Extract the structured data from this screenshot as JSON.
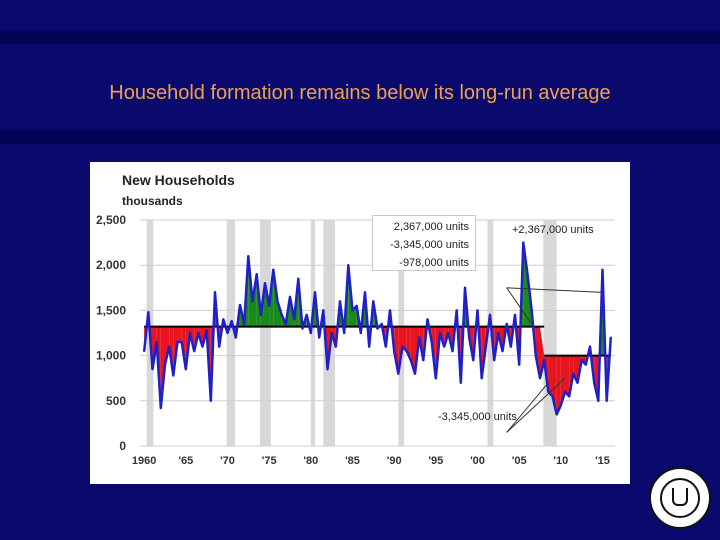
{
  "slide": {
    "title": "Household formation remains below its long-run average"
  },
  "seal": {
    "label": "Federal Reserve Bank of Dallas seal"
  },
  "colors": {
    "background": "#0a0a6e",
    "title": "#f0a04a",
    "series_line": "#2020c8",
    "above_fill": "#1a8a1a",
    "below_fill": "#e8141e",
    "recession_band": "#d8d8d8",
    "average_line": "#000000"
  },
  "annotations": {
    "box": [
      "2,367,000 units",
      "-3,345,000 units",
      "-978,000 units"
    ],
    "plus_label": "+2,367,000 units",
    "minus_label": "-3,345,000 units"
  },
  "chart_data": {
    "type": "area",
    "title": "New Households",
    "subtitle": "thousands",
    "xlabel": "",
    "ylabel": "thousands",
    "xlim": [
      1959.5,
      2016.5
    ],
    "ylim": [
      0,
      2500
    ],
    "yticks": [
      0,
      500,
      1000,
      1500,
      2000,
      2500
    ],
    "ytick_labels": [
      "0",
      "500",
      "1,000",
      "1,500",
      "2,000",
      "2,500"
    ],
    "xtick_positions": [
      1960,
      1965,
      1970,
      1975,
      1980,
      1985,
      1990,
      1995,
      2000,
      2005,
      2010,
      2015
    ],
    "xtick_labels": [
      "1960",
      "'65",
      "'70",
      "'75",
      "'80",
      "'85",
      "'90",
      "'95",
      "'00",
      "'05",
      "'10",
      "'15"
    ],
    "long_run_average": 1320,
    "post_2008_average": 1000,
    "recessions": [
      [
        1960.3,
        1961.1
      ],
      [
        1969.9,
        1970.9
      ],
      [
        1973.9,
        1975.2
      ],
      [
        1980.0,
        1980.5
      ],
      [
        1981.5,
        1982.9
      ],
      [
        1990.5,
        1991.2
      ],
      [
        2001.2,
        2001.9
      ],
      [
        2007.9,
        2009.5
      ]
    ],
    "series": [
      {
        "name": "New Households",
        "x": [
          1960.0,
          1960.5,
          1961.0,
          1961.5,
          1962.0,
          1962.5,
          1963.0,
          1963.5,
          1964.0,
          1964.5,
          1965.0,
          1965.5,
          1966.0,
          1966.5,
          1967.0,
          1967.5,
          1968.0,
          1968.5,
          1969.0,
          1969.5,
          1970.0,
          1970.5,
          1971.0,
          1971.5,
          1972.0,
          1972.5,
          1973.0,
          1973.5,
          1974.0,
          1974.5,
          1975.0,
          1975.5,
          1976.0,
          1976.5,
          1977.0,
          1977.5,
          1978.0,
          1978.5,
          1979.0,
          1979.5,
          1980.0,
          1980.5,
          1981.0,
          1981.5,
          1982.0,
          1982.5,
          1983.0,
          1983.5,
          1984.0,
          1984.5,
          1985.0,
          1985.5,
          1986.0,
          1986.5,
          1987.0,
          1987.5,
          1988.0,
          1988.5,
          1989.0,
          1989.5,
          1990.0,
          1990.5,
          1991.0,
          1991.5,
          1992.0,
          1992.5,
          1993.0,
          1993.5,
          1994.0,
          1994.5,
          1995.0,
          1995.5,
          1996.0,
          1996.5,
          1997.0,
          1997.5,
          1998.0,
          1998.5,
          1999.0,
          1999.5,
          2000.0,
          2000.5,
          2001.0,
          2001.5,
          2002.0,
          2002.5,
          2003.0,
          2003.5,
          2004.0,
          2004.5,
          2005.0,
          2005.5,
          2006.0,
          2006.5,
          2007.0,
          2007.5,
          2008.0,
          2008.5,
          2009.0,
          2009.5,
          2010.0,
          2010.5,
          2011.0,
          2011.5,
          2012.0,
          2012.5,
          2013.0,
          2013.5,
          2014.0,
          2014.5,
          2015.0,
          2015.5,
          2016.0
        ],
        "y": [
          1050,
          1480,
          850,
          1150,
          420,
          900,
          1100,
          780,
          1150,
          1150,
          850,
          1250,
          1050,
          1250,
          1100,
          1280,
          500,
          1700,
          1100,
          1400,
          1250,
          1380,
          1200,
          1560,
          1350,
          2100,
          1600,
          1900,
          1450,
          1800,
          1550,
          1950,
          1600,
          1450,
          1350,
          1650,
          1400,
          1850,
          1300,
          1450,
          1250,
          1700,
          1200,
          1500,
          850,
          1250,
          1100,
          1600,
          1250,
          2000,
          1500,
          1550,
          1250,
          1700,
          1100,
          1600,
          1300,
          1350,
          1100,
          1500,
          1050,
          800,
          1100,
          1050,
          950,
          800,
          1200,
          950,
          1400,
          1150,
          750,
          1250,
          1100,
          1250,
          1050,
          1500,
          700,
          1750,
          1200,
          950,
          1500,
          750,
          1100,
          1450,
          950,
          1250,
          1050,
          1350,
          1100,
          1450,
          900,
          2250,
          1900,
          1500,
          1000,
          750,
          950,
          600,
          550,
          350,
          450,
          600,
          550,
          800,
          700,
          950,
          900,
          1100,
          700,
          500,
          1950,
          500,
          1200
        ]
      }
    ]
  }
}
